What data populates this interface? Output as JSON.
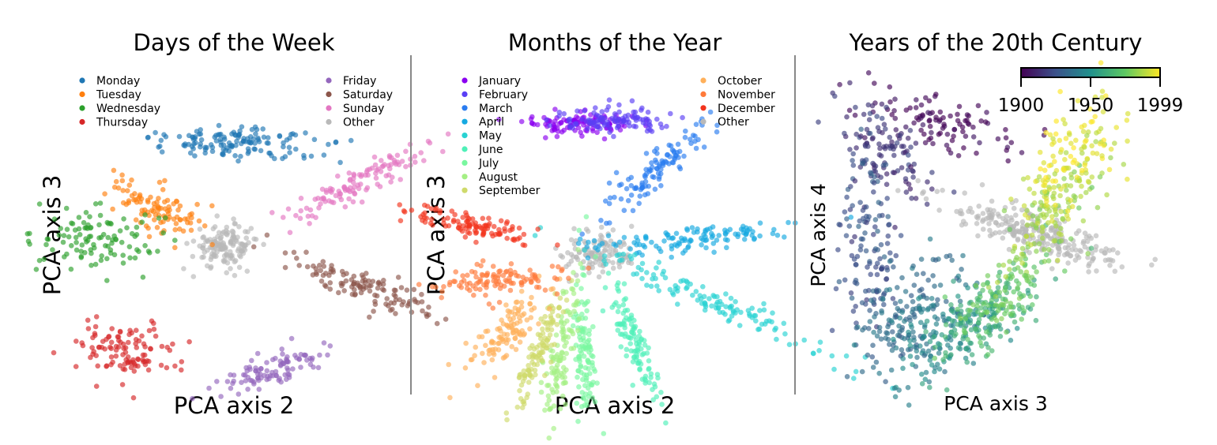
{
  "chart_data": [
    {
      "type": "scatter",
      "title": "Days of the Week",
      "xlabel": "PCA axis 2",
      "ylabel": "PCA axis 3",
      "xlim": [
        -1,
        1
      ],
      "ylim": [
        -1,
        1
      ],
      "grid": false,
      "legend_placement": "top-left and top-right",
      "legend_columns": [
        [
          "Monday",
          "Tuesday",
          "Wednesday",
          "Thursday"
        ],
        [
          "Friday",
          "Saturday",
          "Sunday",
          "Other"
        ]
      ],
      "series": [
        {
          "name": "Monday",
          "color": "#1f77b4",
          "center": [
            0.03,
            0.58
          ],
          "spread": [
            0.05,
            0.22
          ],
          "angle": 88,
          "n": 140
        },
        {
          "name": "Tuesday",
          "color": "#ff7f0e",
          "center": [
            -0.48,
            0.18
          ],
          "spread": [
            0.08,
            0.16
          ],
          "angle": 65,
          "n": 100
        },
        {
          "name": "Wednesday",
          "color": "#2ca02c",
          "center": [
            -0.85,
            -0.02
          ],
          "spread": [
            0.19,
            0.1
          ],
          "angle": -5,
          "n": 110
        },
        {
          "name": "Thursday",
          "color": "#d62728",
          "center": [
            -0.68,
            -0.73
          ],
          "spread": [
            0.17,
            0.1
          ],
          "angle": -5,
          "n": 110
        },
        {
          "name": "Friday",
          "color": "#9467bd",
          "center": [
            0.25,
            -0.85
          ],
          "spread": [
            0.05,
            0.18
          ],
          "angle": -70,
          "n": 100
        },
        {
          "name": "Saturday",
          "color": "#8c564b",
          "center": [
            0.84,
            -0.34
          ],
          "spread": [
            0.24,
            0.05
          ],
          "angle": -22,
          "n": 120
        },
        {
          "name": "Sunday",
          "color": "#e377c2",
          "center": [
            0.8,
            0.35
          ],
          "spread": [
            0.24,
            0.05
          ],
          "angle": 28,
          "n": 120
        },
        {
          "name": "Other",
          "color": "#b9b9b9",
          "center": [
            -0.05,
            -0.07
          ],
          "spread": [
            0.1,
            0.07
          ],
          "angle": 0,
          "n": 140
        }
      ]
    },
    {
      "type": "scatter",
      "title": "Months of the Year",
      "xlabel": "PCA axis 2",
      "ylabel": "PCA axis 3",
      "xlim": [
        -1,
        1
      ],
      "ylim": [
        -1,
        1
      ],
      "grid": false,
      "legend_placement": "top-left and top-right",
      "legend_columns": [
        [
          "January",
          "February",
          "March",
          "April",
          "May",
          "June",
          "July",
          "August",
          "September"
        ],
        [
          "October",
          "November",
          "December",
          "Other"
        ]
      ],
      "series": [
        {
          "name": "January",
          "color": "#8a00f0",
          "center": [
            -0.22,
            0.71
          ],
          "spread": [
            0.04,
            0.17
          ],
          "angle": 90,
          "n": 110
        },
        {
          "name": "February",
          "color": "#5a3ff5",
          "center": [
            -0.03,
            0.73
          ],
          "spread": [
            0.04,
            0.16
          ],
          "angle": 90,
          "n": 110
        },
        {
          "name": "March",
          "color": "#2a7cf0",
          "center": [
            0.28,
            0.43
          ],
          "spread": [
            0.23,
            0.05
          ],
          "angle": 42,
          "n": 110
        },
        {
          "name": "April",
          "color": "#16a9e1",
          "center": [
            0.46,
            -0.02
          ],
          "spread": [
            0.28,
            0.04
          ],
          "angle": 6,
          "n": 120
        },
        {
          "name": "May",
          "color": "#28d2d2",
          "center": [
            0.59,
            -0.41
          ],
          "spread": [
            0.45,
            0.04
          ],
          "angle": -25,
          "n": 130
        },
        {
          "name": "June",
          "color": "#4ff0b8",
          "center": [
            0.12,
            -0.68
          ],
          "spread": [
            0.22,
            0.04
          ],
          "angle": -68,
          "n": 110
        },
        {
          "name": "July",
          "color": "#79f79f",
          "center": [
            -0.18,
            -0.75
          ],
          "spread": [
            0.24,
            0.035
          ],
          "angle": -88,
          "n": 110
        },
        {
          "name": "August",
          "color": "#a4ef84",
          "center": [
            -0.33,
            -0.74
          ],
          "spread": [
            0.22,
            0.035
          ],
          "angle": -100,
          "n": 110
        },
        {
          "name": "September",
          "color": "#cfda6b",
          "center": [
            -0.46,
            -0.7
          ],
          "spread": [
            0.22,
            0.035
          ],
          "angle": -110,
          "n": 110
        },
        {
          "name": "October",
          "color": "#ffb05a",
          "center": [
            -0.65,
            -0.59
          ],
          "spread": [
            0.18,
            0.06
          ],
          "angle": -130,
          "n": 110
        },
        {
          "name": "November",
          "color": "#ff7a3a",
          "center": [
            -0.7,
            -0.28
          ],
          "spread": [
            0.19,
            0.05
          ],
          "angle": 3,
          "n": 110
        },
        {
          "name": "December",
          "color": "#f2341d",
          "center": [
            -0.87,
            0.06
          ],
          "spread": [
            0.19,
            0.04
          ],
          "angle": -12,
          "n": 110
        },
        {
          "name": "Other",
          "color": "#b9b9b9",
          "center": [
            -0.1,
            -0.12
          ],
          "spread": [
            0.1,
            0.07
          ],
          "angle": 0,
          "n": 120
        }
      ]
    },
    {
      "type": "scatter",
      "title": "Years of the 20th Century",
      "xlabel": "PCA axis 3",
      "ylabel": "PCA axis 4",
      "xlim": [
        -1,
        1
      ],
      "ylim": [
        -1,
        1
      ],
      "grid": false,
      "colorbar": {
        "cmap": "viridis",
        "ticks": [
          "1900",
          "1950",
          "1999"
        ],
        "min": 1900,
        "max": 1999,
        "placement": "top-right"
      },
      "series": [
        {
          "name": "1900",
          "value": 1900,
          "center": [
            -0.35,
            0.72
          ],
          "spread": [
            0.25,
            0.08
          ],
          "angle": -15,
          "n": 100
        },
        {
          "name": "1915",
          "value": 1915,
          "center": [
            -0.66,
            0.52
          ],
          "spread": [
            0.2,
            0.1
          ],
          "angle": -55,
          "n": 110
        },
        {
          "name": "1925",
          "value": 1925,
          "center": [
            -0.78,
            -0.05
          ],
          "spread": [
            0.3,
            0.09
          ],
          "angle": 92,
          "n": 130
        },
        {
          "name": "1935",
          "value": 1935,
          "center": [
            -0.55,
            -0.52
          ],
          "spread": [
            0.22,
            0.12
          ],
          "angle": 60,
          "n": 130
        },
        {
          "name": "1945",
          "value": 1945,
          "center": [
            -0.35,
            -0.63
          ],
          "spread": [
            0.18,
            0.12
          ],
          "angle": 35,
          "n": 130
        },
        {
          "name": "1960",
          "value": 1960,
          "center": [
            -0.1,
            -0.55
          ],
          "spread": [
            0.22,
            0.1
          ],
          "angle": 45,
          "n": 130
        },
        {
          "name": "1975",
          "value": 1975,
          "center": [
            0.05,
            -0.38
          ],
          "spread": [
            0.22,
            0.09
          ],
          "angle": 40,
          "n": 110
        },
        {
          "name": "1985",
          "value": 1985,
          "center": [
            0.34,
            0.14
          ],
          "spread": [
            0.22,
            0.09
          ],
          "angle": 55,
          "n": 130
        },
        {
          "name": "1995",
          "value": 1995,
          "center": [
            0.45,
            0.5
          ],
          "spread": [
            0.2,
            0.1
          ],
          "angle": 60,
          "n": 120
        },
        {
          "name": "Other",
          "value": null,
          "color": "#b9b9b9",
          "center": [
            0.25,
            0.0
          ],
          "spread": [
            0.3,
            0.06
          ],
          "angle": -20,
          "n": 260
        }
      ]
    }
  ]
}
